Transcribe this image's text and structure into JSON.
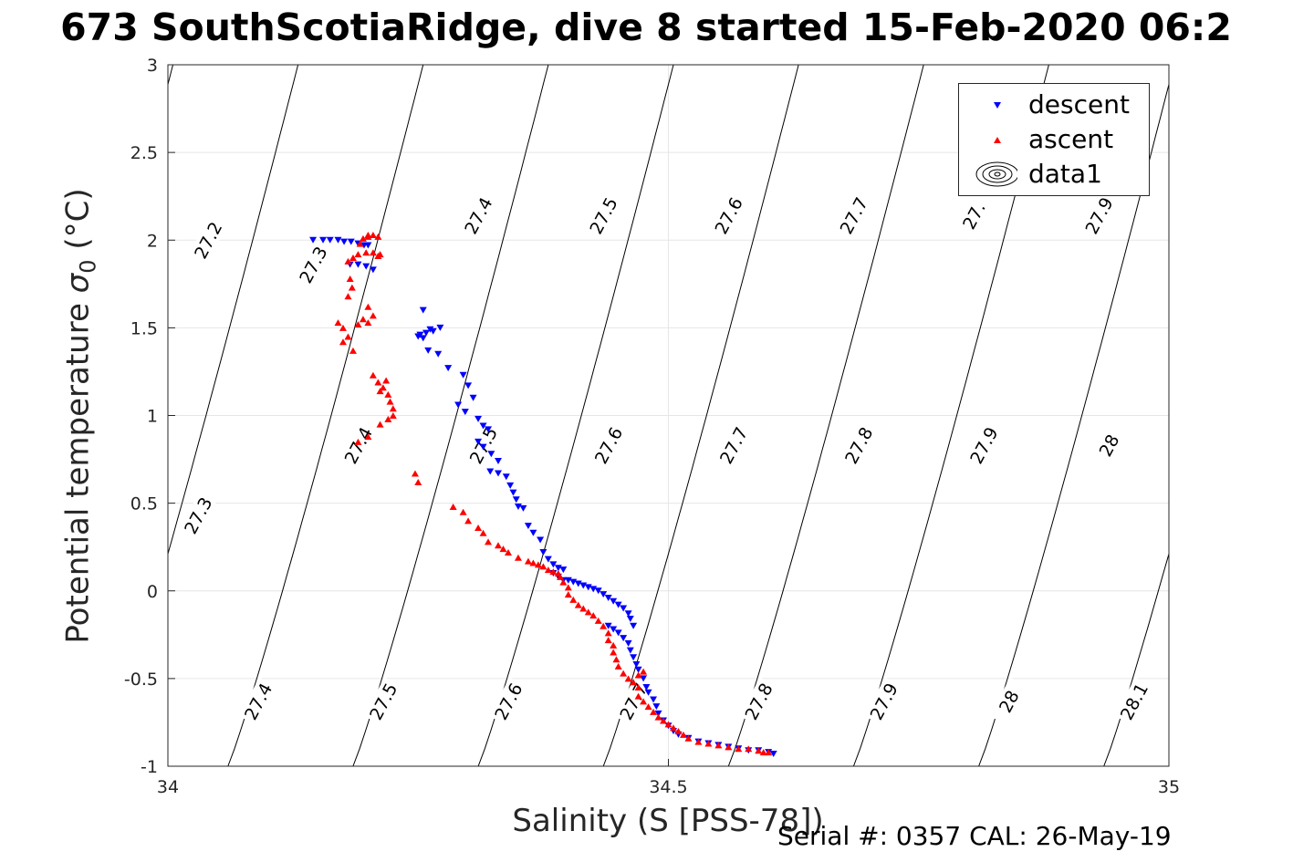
{
  "chart_data": {
    "type": "scatter",
    "title": "673 SouthScotiaRidge, dive 8 started 15-Feb-2020 06:2",
    "xlabel": "Salinity (S [PSS-78])",
    "ylabel_main": "Potential temperature",
    "ylabel_symbol": "σ",
    "ylabel_sub": "0",
    "ylabel_unit": "(°C)",
    "xlim": [
      34,
      35
    ],
    "ylim": [
      -1,
      3
    ],
    "xticks": [
      34,
      34.5,
      35
    ],
    "xtick_labels": [
      "34",
      "34.5",
      "35"
    ],
    "yticks": [
      -1,
      -0.5,
      0,
      0.5,
      1,
      1.5,
      2,
      2.5,
      3
    ],
    "ytick_labels": [
      "-1",
      "-0.5",
      "0",
      "0.5",
      "1",
      "1.5",
      "2",
      "2.5",
      "3"
    ],
    "grid": true,
    "legend_position": "top-right",
    "legend": [
      {
        "label": "descent",
        "marker": "triangle-down",
        "color": "#0000ff"
      },
      {
        "label": "ascent",
        "marker": "triangle-up",
        "color": "#ff0000"
      },
      {
        "label": "data1",
        "marker": "contour",
        "color": "#000000"
      }
    ],
    "contours": {
      "color": "#000000",
      "lines": [
        {
          "x_at_top": 34.005,
          "x_at_bottom": 33.81
        },
        {
          "x_at_top": 34.13,
          "x_at_bottom": 33.935
        },
        {
          "x_at_top": 34.255,
          "x_at_bottom": 34.06
        },
        {
          "x_at_top": 34.38,
          "x_at_bottom": 34.185
        },
        {
          "x_at_top": 34.505,
          "x_at_bottom": 34.31
        },
        {
          "x_at_top": 34.63,
          "x_at_bottom": 34.435
        },
        {
          "x_at_top": 34.755,
          "x_at_bottom": 34.56
        },
        {
          "x_at_top": 34.88,
          "x_at_bottom": 34.685
        },
        {
          "x_at_top": 35.005,
          "x_at_bottom": 34.81
        },
        {
          "x_at_top": 35.13,
          "x_at_bottom": 34.935
        }
      ],
      "labels": [
        {
          "text": "27.2",
          "x": 34.04,
          "y": 2.0
        },
        {
          "text": "27.3",
          "x": 34.145,
          "y": 1.86
        },
        {
          "text": "27.4",
          "x": 34.31,
          "y": 2.14
        },
        {
          "text": "27.5",
          "x": 34.435,
          "y": 2.14
        },
        {
          "text": "27.6",
          "x": 34.56,
          "y": 2.14
        },
        {
          "text": "27.7",
          "x": 34.685,
          "y": 2.14
        },
        {
          "text": "27.",
          "x": 34.805,
          "y": 2.14
        },
        {
          "text": "27.9",
          "x": 34.93,
          "y": 2.14
        },
        {
          "text": "27.3",
          "x": 34.03,
          "y": 0.43
        },
        {
          "text": "27.4",
          "x": 34.19,
          "y": 0.83
        },
        {
          "text": "27.5",
          "x": 34.315,
          "y": 0.83
        },
        {
          "text": "27.6",
          "x": 34.44,
          "y": 0.83
        },
        {
          "text": "27.7",
          "x": 34.565,
          "y": 0.83
        },
        {
          "text": "27.8",
          "x": 34.69,
          "y": 0.83
        },
        {
          "text": "27.9",
          "x": 34.815,
          "y": 0.83
        },
        {
          "text": "28",
          "x": 34.94,
          "y": 0.83
        },
        {
          "text": "27.4",
          "x": 34.09,
          "y": -0.63
        },
        {
          "text": "27.5",
          "x": 34.215,
          "y": -0.63
        },
        {
          "text": "27.6",
          "x": 34.34,
          "y": -0.63
        },
        {
          "text": "27.7",
          "x": 34.465,
          "y": -0.63
        },
        {
          "text": "27.8",
          "x": 34.59,
          "y": -0.63
        },
        {
          "text": "27.9",
          "x": 34.715,
          "y": -0.63
        },
        {
          "text": "28",
          "x": 34.84,
          "y": -0.63
        },
        {
          "text": "28.1",
          "x": 34.965,
          "y": -0.63
        }
      ]
    },
    "series": [
      {
        "name": "descent",
        "color": "#0000ff",
        "marker": "triangle-down",
        "points": [
          [
            34.145,
            2.0
          ],
          [
            34.155,
            2.0
          ],
          [
            34.162,
            2.0
          ],
          [
            34.17,
            2.0
          ],
          [
            34.176,
            1.99
          ],
          [
            34.183,
            1.99
          ],
          [
            34.19,
            1.98
          ],
          [
            34.196,
            1.97
          ],
          [
            34.2,
            1.97
          ],
          [
            34.182,
            1.86
          ],
          [
            34.19,
            1.86
          ],
          [
            34.198,
            1.85
          ],
          [
            34.205,
            1.83
          ],
          [
            34.252,
            1.46
          ],
          [
            34.258,
            1.47
          ],
          [
            34.265,
            1.48
          ],
          [
            34.255,
            1.44
          ],
          [
            34.25,
            1.45
          ],
          [
            34.26,
            1.37
          ],
          [
            34.27,
            1.35
          ],
          [
            34.255,
            1.6
          ],
          [
            34.262,
            1.49
          ],
          [
            34.272,
            1.5
          ],
          [
            34.28,
            1.27
          ],
          [
            34.295,
            1.23
          ],
          [
            34.3,
            1.17
          ],
          [
            34.305,
            1.1
          ],
          [
            34.29,
            1.06
          ],
          [
            34.297,
            1.02
          ],
          [
            34.31,
            0.98
          ],
          [
            34.315,
            0.94
          ],
          [
            34.32,
            0.92
          ],
          [
            34.31,
            0.85
          ],
          [
            34.315,
            0.82
          ],
          [
            34.323,
            0.78
          ],
          [
            34.33,
            0.74
          ],
          [
            34.322,
            0.68
          ],
          [
            34.33,
            0.67
          ],
          [
            34.338,
            0.65
          ],
          [
            34.342,
            0.6
          ],
          [
            34.345,
            0.56
          ],
          [
            34.348,
            0.52
          ],
          [
            34.35,
            0.48
          ],
          [
            34.355,
            0.47
          ],
          [
            34.36,
            0.37
          ],
          [
            34.365,
            0.33
          ],
          [
            34.372,
            0.29
          ],
          [
            34.375,
            0.22
          ],
          [
            34.38,
            0.18
          ],
          [
            34.385,
            0.15
          ],
          [
            34.39,
            0.13
          ],
          [
            34.395,
            0.12
          ],
          [
            34.385,
            0.1
          ],
          [
            34.39,
            0.08
          ],
          [
            34.395,
            0.06
          ],
          [
            34.4,
            0.06
          ],
          [
            34.405,
            0.05
          ],
          [
            34.41,
            0.04
          ],
          [
            34.415,
            0.03
          ],
          [
            34.42,
            0.02
          ],
          [
            34.425,
            0.01
          ],
          [
            34.43,
            0.0
          ],
          [
            34.435,
            -0.02
          ],
          [
            34.44,
            -0.04
          ],
          [
            34.445,
            -0.06
          ],
          [
            34.45,
            -0.08
          ],
          [
            34.455,
            -0.1
          ],
          [
            34.46,
            -0.13
          ],
          [
            34.462,
            -0.16
          ],
          [
            34.465,
            -0.2
          ],
          [
            34.44,
            -0.2
          ],
          [
            34.445,
            -0.22
          ],
          [
            34.45,
            -0.24
          ],
          [
            34.455,
            -0.27
          ],
          [
            34.46,
            -0.3
          ],
          [
            34.462,
            -0.34
          ],
          [
            34.465,
            -0.38
          ],
          [
            34.468,
            -0.42
          ],
          [
            34.47,
            -0.45
          ],
          [
            34.475,
            -0.5
          ],
          [
            34.478,
            -0.55
          ],
          [
            34.48,
            -0.58
          ],
          [
            34.485,
            -0.62
          ],
          [
            34.488,
            -0.66
          ],
          [
            34.49,
            -0.7
          ],
          [
            34.495,
            -0.74
          ],
          [
            34.5,
            -0.77
          ],
          [
            34.505,
            -0.8
          ],
          [
            34.51,
            -0.82
          ],
          [
            34.52,
            -0.84
          ],
          [
            34.53,
            -0.86
          ],
          [
            34.54,
            -0.87
          ],
          [
            34.55,
            -0.88
          ],
          [
            34.56,
            -0.89
          ],
          [
            34.57,
            -0.9
          ],
          [
            34.58,
            -0.91
          ],
          [
            34.59,
            -0.91
          ],
          [
            34.6,
            -0.92
          ],
          [
            34.605,
            -0.93
          ]
        ]
      },
      {
        "name": "ascent",
        "color": "#ff0000",
        "marker": "triangle-up",
        "points": [
          [
            34.195,
            2.01
          ],
          [
            34.2,
            2.03
          ],
          [
            34.205,
            2.03
          ],
          [
            34.21,
            2.02
          ],
          [
            34.2,
            2.02
          ],
          [
            34.192,
            1.98
          ],
          [
            34.19,
            1.92
          ],
          [
            34.198,
            1.93
          ],
          [
            34.205,
            1.93
          ],
          [
            34.21,
            1.91
          ],
          [
            34.212,
            1.92
          ],
          [
            34.185,
            1.9
          ],
          [
            34.18,
            1.88
          ],
          [
            34.182,
            1.78
          ],
          [
            34.184,
            1.73
          ],
          [
            34.18,
            1.68
          ],
          [
            34.2,
            1.62
          ],
          [
            34.205,
            1.57
          ],
          [
            34.195,
            1.55
          ],
          [
            34.2,
            1.53
          ],
          [
            34.19,
            1.52
          ],
          [
            34.17,
            1.53
          ],
          [
            34.175,
            1.5
          ],
          [
            34.18,
            1.45
          ],
          [
            34.175,
            1.42
          ],
          [
            34.185,
            1.37
          ],
          [
            34.205,
            1.23
          ],
          [
            34.21,
            1.19
          ],
          [
            34.215,
            1.16
          ],
          [
            34.22,
            1.12
          ],
          [
            34.212,
            1.14
          ],
          [
            34.218,
            1.2
          ],
          [
            34.222,
            1.08
          ],
          [
            34.225,
            1.04
          ],
          [
            34.225,
            1.0
          ],
          [
            34.22,
            0.98
          ],
          [
            34.212,
            0.95
          ],
          [
            34.2,
            0.88
          ],
          [
            34.19,
            0.85
          ],
          [
            34.247,
            0.67
          ],
          [
            34.25,
            0.62
          ],
          [
            34.285,
            0.48
          ],
          [
            34.295,
            0.45
          ],
          [
            34.3,
            0.4
          ],
          [
            34.31,
            0.36
          ],
          [
            34.315,
            0.33
          ],
          [
            34.32,
            0.28
          ],
          [
            34.33,
            0.26
          ],
          [
            34.335,
            0.24
          ],
          [
            34.34,
            0.22
          ],
          [
            34.35,
            0.19
          ],
          [
            34.36,
            0.17
          ],
          [
            34.365,
            0.16
          ],
          [
            34.37,
            0.15
          ],
          [
            34.375,
            0.14
          ],
          [
            34.38,
            0.12
          ],
          [
            34.385,
            0.11
          ],
          [
            34.39,
            0.1
          ],
          [
            34.392,
            0.08
          ],
          [
            34.395,
            0.05
          ],
          [
            34.4,
            0.02
          ],
          [
            34.4,
            -0.02
          ],
          [
            34.405,
            -0.05
          ],
          [
            34.41,
            -0.08
          ],
          [
            34.415,
            -0.1
          ],
          [
            34.42,
            -0.12
          ],
          [
            34.425,
            -0.14
          ],
          [
            34.43,
            -0.17
          ],
          [
            34.435,
            -0.2
          ],
          [
            34.44,
            -0.24
          ],
          [
            34.44,
            -0.28
          ],
          [
            34.445,
            -0.31
          ],
          [
            34.445,
            -0.35
          ],
          [
            34.448,
            -0.39
          ],
          [
            34.45,
            -0.43
          ],
          [
            34.455,
            -0.47
          ],
          [
            34.46,
            -0.5
          ],
          [
            34.465,
            -0.52
          ],
          [
            34.47,
            -0.48
          ],
          [
            34.475,
            -0.46
          ],
          [
            34.47,
            -0.55
          ],
          [
            34.47,
            -0.6
          ],
          [
            34.475,
            -0.63
          ],
          [
            34.48,
            -0.66
          ],
          [
            34.485,
            -0.69
          ],
          [
            34.49,
            -0.72
          ],
          [
            34.495,
            -0.74
          ],
          [
            34.5,
            -0.76
          ],
          [
            34.505,
            -0.78
          ],
          [
            34.51,
            -0.8
          ],
          [
            34.515,
            -0.82
          ],
          [
            34.52,
            -0.84
          ],
          [
            34.53,
            -0.86
          ],
          [
            34.54,
            -0.87
          ],
          [
            34.55,
            -0.88
          ],
          [
            34.56,
            -0.89
          ],
          [
            34.57,
            -0.9
          ],
          [
            34.58,
            -0.9
          ],
          [
            34.59,
            -0.91
          ],
          [
            34.595,
            -0.92
          ],
          [
            34.6,
            -0.92
          ]
        ]
      }
    ]
  },
  "footer": {
    "serial_text": "Serial #: 0357  CAL: 26-May-19"
  }
}
